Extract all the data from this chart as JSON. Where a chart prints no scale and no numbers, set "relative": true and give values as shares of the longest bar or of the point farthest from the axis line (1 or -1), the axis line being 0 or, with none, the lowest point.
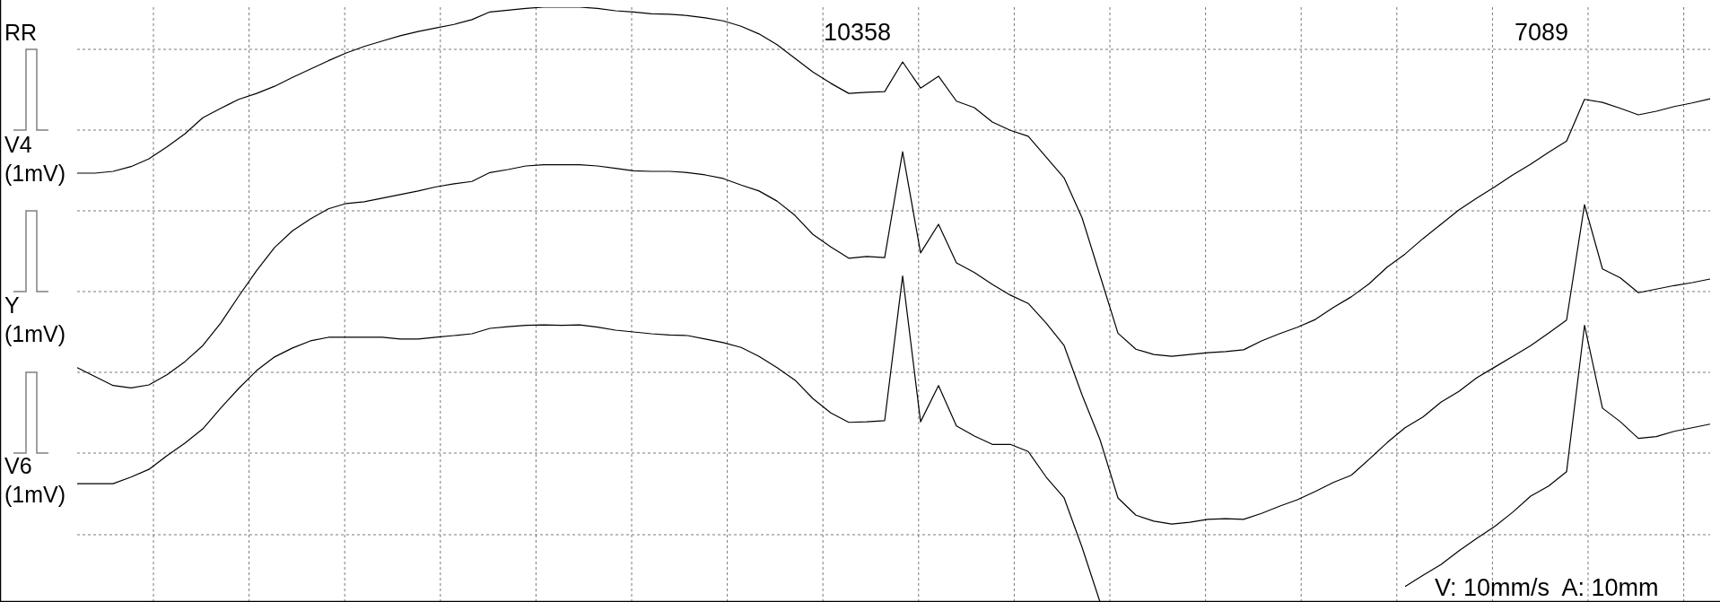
{
  "chart_data": {
    "type": "line",
    "relative": true,
    "grid": true,
    "line_style": "solid",
    "annotations": [
      "RR",
      "10358",
      "7089",
      "V: 10mm/s  A: 10mm"
    ],
    "categories": [
      null,
      null,
      null,
      null,
      null,
      null,
      null,
      null,
      null,
      null,
      null,
      null,
      null,
      null,
      null,
      null,
      null,
      null,
      null,
      null,
      null,
      null,
      null,
      null,
      null,
      null,
      null,
      null,
      null,
      null,
      null,
      null,
      null,
      null,
      null,
      null,
      null,
      null,
      null,
      null,
      null,
      null,
      null,
      null,
      null,
      null,
      null,
      null,
      null,
      null,
      null,
      null,
      null,
      null,
      null,
      null,
      null,
      null,
      null,
      null,
      null,
      null,
      null,
      null,
      null,
      null,
      null,
      null,
      null,
      null,
      null,
      null,
      null,
      null,
      null,
      null,
      null,
      null,
      null,
      null,
      null,
      null,
      null,
      null,
      null,
      null,
      null,
      null,
      null,
      null,
      null,
      null
    ],
    "series": [
      {
        "name": "V4 (1mV)",
        "color": "#000000",
        "values": [
          0.721,
          0.721,
          0.724,
          0.732,
          0.745,
          0.765,
          0.787,
          0.814,
          0.83,
          0.845,
          0.855,
          0.867,
          0.882,
          0.896,
          0.91,
          0.923,
          0.934,
          0.943,
          0.952,
          0.959,
          0.965,
          0.971,
          0.979,
          0.992,
          0.995,
          0.998,
          1,
          1,
          1,
          0.998,
          0.994,
          0.992,
          0.989,
          0.988,
          0.986,
          0.982,
          0.977,
          0.968,
          0.955,
          0.937,
          0.914,
          0.891,
          0.872,
          0.855,
          0.857,
          0.858,
          0.908,
          0.864,
          0.884,
          0.842,
          0.831,
          0.807,
          0.793,
          0.783,
          0.748,
          0.713,
          0.646,
          0.549,
          0.452,
          0.425,
          0.416,
          0.413,
          0.416,
          0.419,
          0.421,
          0.424,
          0.439,
          0.451,
          0.462,
          0.475,
          0.495,
          0.513,
          0.535,
          0.563,
          0.585,
          0.611,
          0.635,
          0.659,
          0.679,
          0.698,
          0.718,
          0.736,
          0.756,
          0.775,
          0.845,
          0.84,
          0.83,
          0.819,
          0.825,
          0.833,
          0.839,
          0.846
        ]
      },
      {
        "name": "Y (1mV)",
        "color": "#000000",
        "values": [
          0.394,
          0.379,
          0.364,
          0.36,
          0.365,
          0.382,
          0.404,
          0.431,
          0.469,
          0.514,
          0.557,
          0.596,
          0.624,
          0.644,
          0.661,
          0.67,
          0.673,
          0.679,
          0.685,
          0.691,
          0.698,
          0.703,
          0.707,
          0.722,
          0.727,
          0.733,
          0.735,
          0.735,
          0.735,
          0.733,
          0.729,
          0.725,
          0.724,
          0.724,
          0.722,
          0.718,
          0.712,
          0.701,
          0.691,
          0.674,
          0.65,
          0.618,
          0.597,
          0.578,
          0.581,
          0.579,
          0.757,
          0.587,
          0.635,
          0.57,
          0.554,
          0.534,
          0.516,
          0.502,
          0.469,
          0.431,
          0.348,
          0.273,
          0.175,
          0.146,
          0.136,
          0.131,
          0.134,
          0.139,
          0.14,
          0.139,
          0.149,
          0.161,
          0.172,
          0.186,
          0.201,
          0.213,
          0.24,
          0.268,
          0.293,
          0.311,
          0.336,
          0.354,
          0.377,
          0.395,
          0.413,
          0.431,
          0.452,
          0.474,
          0.668,
          0.56,
          0.545,
          0.52,
          0.526,
          0.532,
          0.537,
          0.543
        ]
      },
      {
        "name": "V6 (1mV)",
        "color": "#000000",
        "values": [
          0.199,
          0.199,
          0.199,
          0.21,
          0.223,
          0.246,
          0.267,
          0.291,
          0.326,
          0.359,
          0.389,
          0.412,
          0.427,
          0.439,
          0.445,
          0.445,
          0.445,
          0.445,
          0.442,
          0.442,
          0.445,
          0.448,
          0.451,
          0.46,
          0.463,
          0.465,
          0.466,
          0.465,
          0.466,
          0.462,
          0.457,
          0.454,
          0.451,
          0.449,
          0.448,
          0.442,
          0.436,
          0.428,
          0.413,
          0.394,
          0.373,
          0.342,
          0.318,
          0.302,
          0.303,
          0.305,
          0.548,
          0.303,
          0.364,
          0.296,
          0.279,
          0.265,
          0.265,
          0.253,
          0.21,
          0.175,
          0.092,
          0,
          null,
          null,
          null,
          null,
          null,
          null,
          null,
          null,
          null,
          null,
          null,
          null,
          null,
          null,
          null,
          null,
          0.026,
          0.045,
          0.063,
          0.086,
          0.107,
          0.127,
          0.151,
          0.178,
          0.195,
          0.219,
          0.465,
          0.326,
          0.303,
          0.275,
          0.278,
          0.287,
          0.293,
          0.299
        ]
      }
    ]
  }
}
